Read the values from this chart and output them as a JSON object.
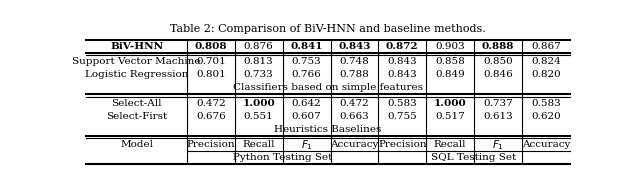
{
  "title": "Table 2: Comparison of BiV-HNN and baseline methods.",
  "section1_title": "Heuristics Baselines",
  "section2_title": "Classifiers based on simple features",
  "rows": [
    {
      "model": "Select-First",
      "bold_model": false,
      "values": [
        "0.676",
        "0.551",
        "0.607",
        "0.663",
        "0.755",
        "0.517",
        "0.613",
        "0.620"
      ],
      "bold_values": [
        false,
        false,
        false,
        false,
        false,
        false,
        false,
        false
      ]
    },
    {
      "model": "Select-All",
      "bold_model": false,
      "values": [
        "0.472",
        "1.000",
        "0.642",
        "0.472",
        "0.583",
        "1.000",
        "0.737",
        "0.583"
      ],
      "bold_values": [
        false,
        true,
        false,
        false,
        false,
        true,
        false,
        false
      ]
    },
    {
      "model": "Logistic Regression",
      "bold_model": false,
      "values": [
        "0.801",
        "0.733",
        "0.766",
        "0.788",
        "0.843",
        "0.849",
        "0.846",
        "0.820"
      ],
      "bold_values": [
        false,
        false,
        false,
        false,
        false,
        false,
        false,
        false
      ]
    },
    {
      "model": "Support Vector Machine",
      "bold_model": false,
      "values": [
        "0.701",
        "0.813",
        "0.753",
        "0.748",
        "0.843",
        "0.858",
        "0.850",
        "0.824"
      ],
      "bold_values": [
        false,
        false,
        false,
        false,
        false,
        false,
        false,
        false
      ]
    },
    {
      "model": "BiV-HNN",
      "bold_model": true,
      "values": [
        "0.808",
        "0.876",
        "0.841",
        "0.843",
        "0.872",
        "0.903",
        "0.888",
        "0.867"
      ],
      "bold_values": [
        true,
        false,
        true,
        true,
        true,
        false,
        true,
        false
      ]
    }
  ],
  "background_color": "#ffffff",
  "font_size": 7.5,
  "caption_fontsize": 8.0
}
